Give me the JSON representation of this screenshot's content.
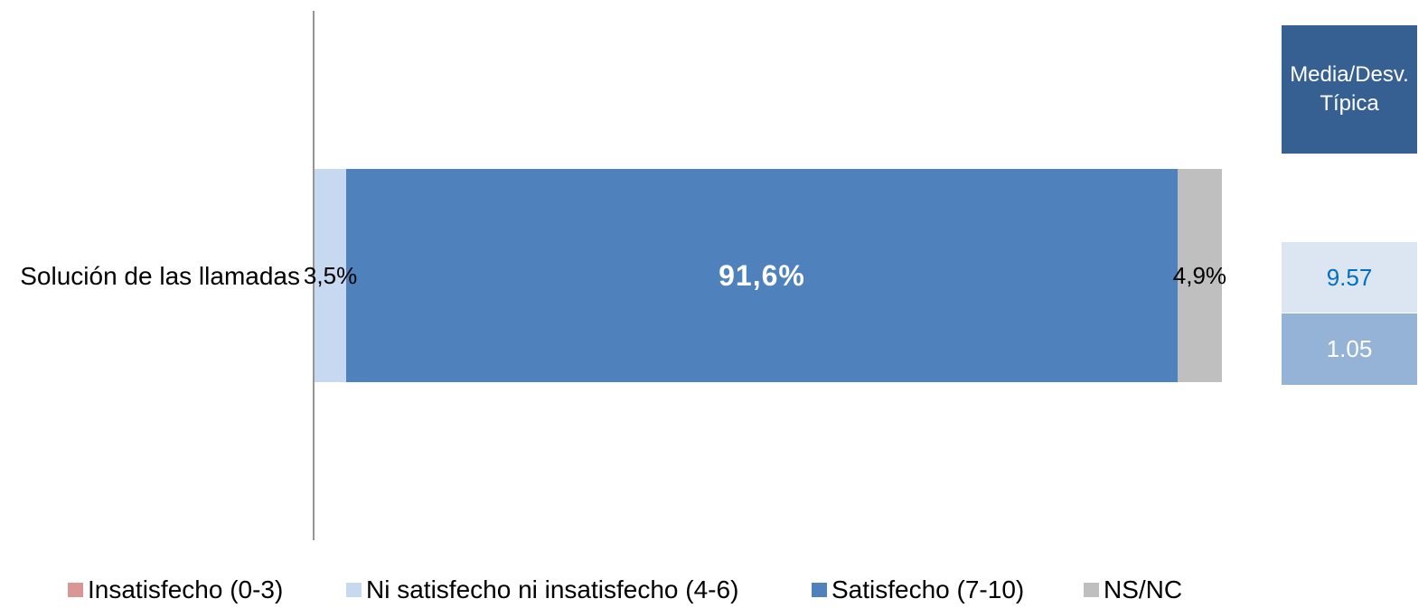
{
  "chart_data": {
    "type": "bar",
    "orientation": "horizontal",
    "stacked": true,
    "categories": [
      "Solución de las llamadas"
    ],
    "series": [
      {
        "name": "Insatisfecho (0-3)",
        "values": [
          0
        ],
        "color": "#d99694"
      },
      {
        "name": "Ni satisfecho ni insatisfecho (4-6)",
        "values": [
          3.5
        ],
        "labels": [
          "3,5%"
        ],
        "color": "#c6d9f1"
      },
      {
        "name": "Satisfecho (7-10)",
        "values": [
          91.6
        ],
        "labels": [
          "91,6%"
        ],
        "color": "#4f81bd"
      },
      {
        "name": "NS/NC",
        "values": [
          4.9
        ],
        "labels": [
          "4,9%"
        ],
        "color": "#bfbfbf"
      }
    ],
    "xlim": [
      0,
      100
    ],
    "grid": false,
    "legend": "bottom"
  },
  "stats_table": {
    "header": "Media/Desv. Típica",
    "mean": "9.57",
    "std_dev": "1.05",
    "header_bg": "#376092",
    "mean_bg": "#dce6f2",
    "mean_text": "#0070c0",
    "std_dev_bg": "#95b3d7"
  }
}
